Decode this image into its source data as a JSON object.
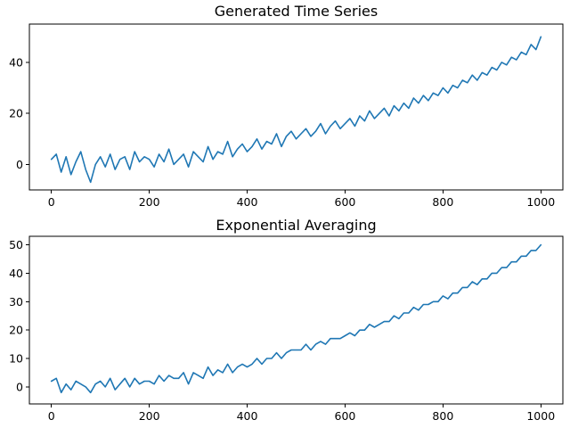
{
  "chart_data": [
    {
      "type": "line",
      "title": "Generated Time Series",
      "xlabel": "",
      "ylabel": "",
      "xlim": [
        -45,
        1045
      ],
      "ylim": [
        -10,
        55
      ],
      "xticks": [
        0,
        200,
        400,
        600,
        800,
        1000
      ],
      "yticks": [
        0,
        20,
        40
      ],
      "grid": false,
      "color": "#1f77b4",
      "series": [
        {
          "x": [
            0,
            10,
            20,
            30,
            40,
            50,
            60,
            70,
            80,
            90,
            100,
            110,
            120,
            130,
            140,
            150,
            160,
            170,
            180,
            190,
            200,
            210,
            220,
            230,
            240,
            250,
            260,
            270,
            280,
            290,
            300,
            310,
            320,
            330,
            340,
            350,
            360,
            370,
            380,
            390,
            400,
            410,
            420,
            430,
            440,
            450,
            460,
            470,
            480,
            490,
            500,
            510,
            520,
            530,
            540,
            550,
            560,
            570,
            580,
            590,
            600,
            610,
            620,
            630,
            640,
            650,
            660,
            670,
            680,
            690,
            700,
            710,
            720,
            730,
            740,
            750,
            760,
            770,
            780,
            790,
            800,
            810,
            820,
            830,
            840,
            850,
            860,
            870,
            880,
            890,
            900,
            910,
            920,
            930,
            940,
            950,
            960,
            970,
            980,
            990,
            1000
          ],
          "values": [
            2,
            4,
            -3,
            3,
            -4,
            1,
            5,
            -2,
            -7,
            0,
            3,
            -1,
            4,
            -2,
            2,
            3,
            -2,
            5,
            1,
            3,
            2,
            -1,
            4,
            1,
            6,
            0,
            2,
            4,
            -1,
            5,
            3,
            1,
            7,
            2,
            5,
            4,
            9,
            3,
            6,
            8,
            5,
            7,
            10,
            6,
            9,
            8,
            12,
            7,
            11,
            13,
            10,
            12,
            14,
            11,
            13,
            16,
            12,
            15,
            17,
            14,
            16,
            18,
            15,
            19,
            17,
            21,
            18,
            20,
            22,
            19,
            23,
            21,
            24,
            22,
            26,
            24,
            27,
            25,
            28,
            27,
            30,
            28,
            31,
            30,
            33,
            32,
            35,
            33,
            36,
            35,
            38,
            37,
            40,
            39,
            42,
            41,
            44,
            43,
            47,
            45,
            50
          ]
        }
      ]
    },
    {
      "type": "line",
      "title": "Exponential Averaging",
      "xlabel": "",
      "ylabel": "",
      "xlim": [
        -45,
        1045
      ],
      "ylim": [
        -6,
        53
      ],
      "xticks": [
        0,
        200,
        400,
        600,
        800,
        1000
      ],
      "yticks": [
        0,
        10,
        20,
        30,
        40,
        50
      ],
      "grid": false,
      "color": "#1f77b4",
      "series": [
        {
          "x": [
            0,
            10,
            20,
            30,
            40,
            50,
            60,
            70,
            80,
            90,
            100,
            110,
            120,
            130,
            140,
            150,
            160,
            170,
            180,
            190,
            200,
            210,
            220,
            230,
            240,
            250,
            260,
            270,
            280,
            290,
            300,
            310,
            320,
            330,
            340,
            350,
            360,
            370,
            380,
            390,
            400,
            410,
            420,
            430,
            440,
            450,
            460,
            470,
            480,
            490,
            500,
            510,
            520,
            530,
            540,
            550,
            560,
            570,
            580,
            590,
            600,
            610,
            620,
            630,
            640,
            650,
            660,
            670,
            680,
            690,
            700,
            710,
            720,
            730,
            740,
            750,
            760,
            770,
            780,
            790,
            800,
            810,
            820,
            830,
            840,
            850,
            860,
            870,
            880,
            890,
            900,
            910,
            920,
            930,
            940,
            950,
            960,
            970,
            980,
            990,
            1000
          ],
          "values": [
            2,
            3,
            -2,
            1,
            -1,
            2,
            1,
            0,
            -2,
            1,
            2,
            0,
            3,
            -1,
            1,
            3,
            0,
            3,
            1,
            2,
            2,
            1,
            4,
            2,
            4,
            3,
            3,
            5,
            1,
            5,
            4,
            3,
            7,
            4,
            6,
            5,
            8,
            5,
            7,
            8,
            7,
            8,
            10,
            8,
            10,
            10,
            12,
            10,
            12,
            13,
            13,
            13,
            15,
            13,
            15,
            16,
            15,
            17,
            17,
            17,
            18,
            19,
            18,
            20,
            20,
            22,
            21,
            22,
            23,
            23,
            25,
            24,
            26,
            26,
            28,
            27,
            29,
            29,
            30,
            30,
            32,
            31,
            33,
            33,
            35,
            35,
            37,
            36,
            38,
            38,
            40,
            40,
            42,
            42,
            44,
            44,
            46,
            46,
            48,
            48,
            50
          ]
        }
      ]
    }
  ]
}
